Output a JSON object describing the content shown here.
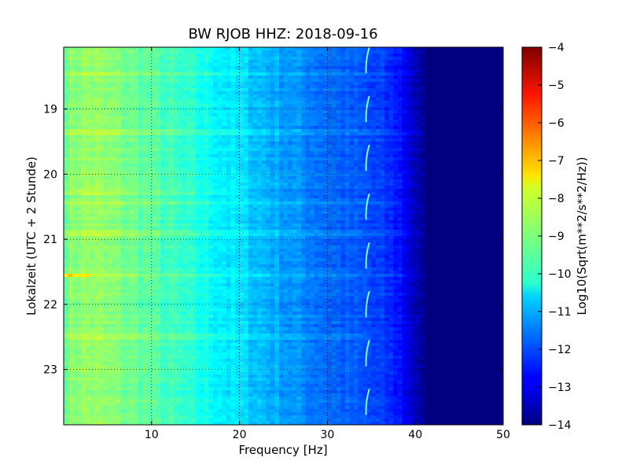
{
  "chart_data": {
    "type": "heatmap",
    "title": "BW RJOB HHZ: 2018-09-16",
    "xlabel": "Frequency [Hz]",
    "ylabel": "Lokalzeit (UTC + 2 Stunde)",
    "xlim": [
      0,
      50
    ],
    "ylim": [
      18.05,
      23.85
    ],
    "x_ticks": [
      10,
      20,
      30,
      40,
      50
    ],
    "x_tick_labels": [
      "10",
      "20",
      "30",
      "40",
      "50"
    ],
    "y_ticks": [
      19,
      20,
      21,
      22,
      23
    ],
    "y_tick_labels": [
      "19",
      "20",
      "21",
      "22",
      "23"
    ],
    "grid": true,
    "colormap": "jet",
    "colorbar": {
      "label": "Log10(Sqrt(m**2/s**2/Hz))",
      "range": [
        -14,
        -4
      ],
      "ticks": [
        -4,
        -5,
        -6,
        -7,
        -8,
        -9,
        -10,
        -11,
        -12,
        -13,
        -14
      ],
      "tick_labels": [
        "−4",
        "−5",
        "−6",
        "−7",
        "−8",
        "−9",
        "−10",
        "−11",
        "−12",
        "−13",
        "−14"
      ]
    },
    "level_profile": {
      "frequency_hz": [
        0,
        1,
        3,
        6,
        10,
        15,
        20,
        25,
        30,
        35,
        38,
        40,
        41,
        50
      ],
      "log10_amplitude": [
        -9.2,
        -8.9,
        -8.8,
        -9.0,
        -9.4,
        -10.0,
        -10.6,
        -11.2,
        -11.7,
        -12.1,
        -12.5,
        -13.4,
        -14.0,
        -14.0
      ]
    },
    "events": [
      {
        "time": 18.45,
        "fmax": 40,
        "delta": 0.6
      },
      {
        "time": 19.35,
        "fmax": 42,
        "delta": 0.5
      },
      {
        "time": 20.27,
        "fmax": 20,
        "delta": 0.4
      },
      {
        "time": 20.45,
        "fmax": 38,
        "delta": 0.3
      },
      {
        "time": 20.9,
        "fmax": 42,
        "delta": 0.5
      },
      {
        "time": 21.55,
        "fmax": 42,
        "delta": 0.4
      },
      {
        "time": 21.55,
        "fmax": 3,
        "delta": 1.3
      },
      {
        "time": 22.5,
        "fmax": 35,
        "delta": 0.3
      },
      {
        "time": 23.0,
        "fmax": 38,
        "delta": 0.3
      }
    ],
    "tonal_line": {
      "frequency_hz": 34.5,
      "start_times": [
        18.05,
        18.8,
        19.55,
        20.3,
        21.05,
        21.8,
        22.55,
        23.3
      ],
      "duration_hours": 0.4
    }
  }
}
